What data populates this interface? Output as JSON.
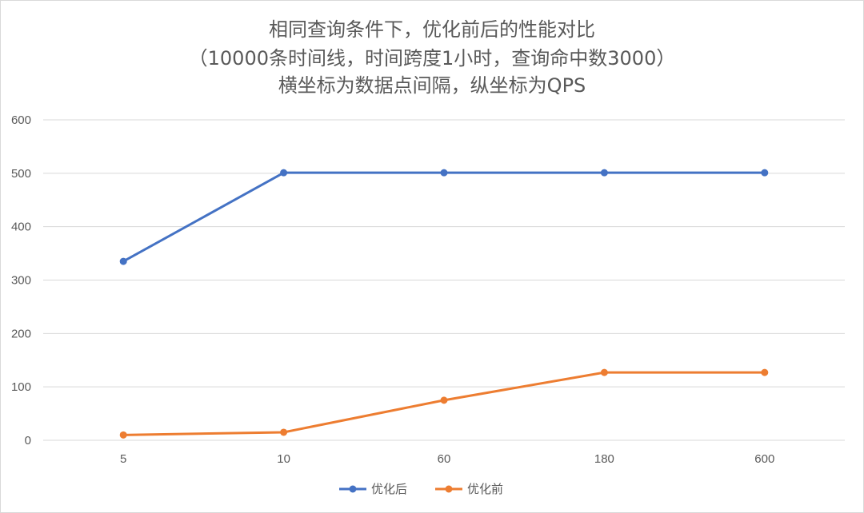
{
  "chart_data": {
    "type": "line",
    "title_lines": [
      "相同查询条件下，优化前后的性能对比",
      "（10000条时间线，时间跨度1小时，查询命中数3000）",
      "横坐标为数据点间隔，纵坐标为QPS"
    ],
    "categories": [
      "5",
      "10",
      "60",
      "180",
      "600"
    ],
    "ylim": [
      0,
      600
    ],
    "yticks": [
      0,
      100,
      200,
      300,
      400,
      500,
      600
    ],
    "grid": true,
    "legend_position": "bottom",
    "series": [
      {
        "name": "优化后",
        "color": "#4472c4",
        "values": [
          335,
          501,
          501,
          501,
          501
        ]
      },
      {
        "name": "优化前",
        "color": "#ed7d31",
        "values": [
          10,
          15,
          75,
          127,
          127
        ]
      }
    ]
  }
}
